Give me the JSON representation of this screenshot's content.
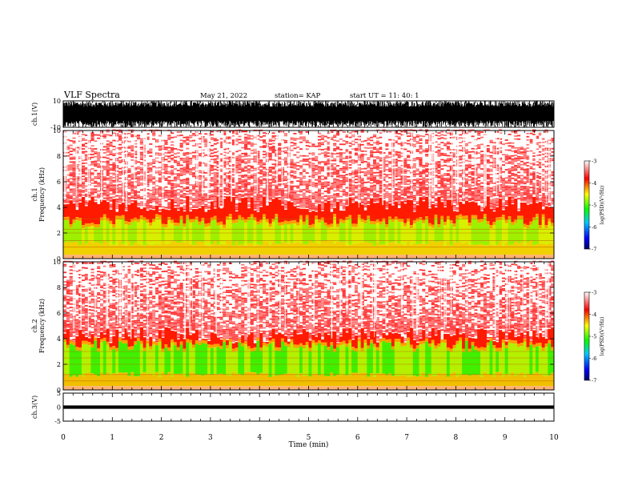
{
  "header": {
    "title": "VLF Spectra",
    "date": "May 21, 2022",
    "station": "station= KAP",
    "start": "start  UT =   11: 40: 1"
  },
  "chart_data": [
    {
      "type": "line",
      "panel": "ch1-waveform",
      "ylabel": "ch.1(V)",
      "yticks": [
        "10",
        "-10"
      ],
      "ylim": [
        -10,
        10
      ],
      "xlim": [
        0,
        10
      ],
      "description_values": {
        "min": -10,
        "max": 10
      },
      "fill": "#000000"
    },
    {
      "type": "heatmap",
      "panel": "ch1-spectrogram",
      "ylabel": "Frequency  (kHz)",
      "ylabel2": "ch.1",
      "yticks": [
        "0",
        "2",
        "4",
        "6",
        "8",
        "10"
      ],
      "ylim": [
        0,
        10
      ],
      "xlim": [
        0,
        10
      ],
      "colorbar": {
        "label": "log(PSD)(V²/Hz)",
        "ticks": [
          "-3",
          "-4",
          "-5",
          "-6",
          "-7"
        ],
        "range": [
          -7,
          -3
        ]
      }
    },
    {
      "type": "heatmap",
      "panel": "ch2-spectrogram",
      "ylabel": "Frequency  (kHz)",
      "ylabel2": "ch.2",
      "yticks": [
        "0",
        "2",
        "4",
        "6",
        "8",
        "10"
      ],
      "ylim": [
        0,
        10
      ],
      "xlim": [
        0,
        10
      ],
      "colorbar": {
        "label": "log(PSD)(V²/Hz)",
        "ticks": [
          "-3",
          "-4",
          "-5",
          "-6",
          "-7"
        ],
        "range": [
          -7,
          -3
        ]
      }
    },
    {
      "type": "line",
      "panel": "ch3-waveform",
      "ylabel": "ch.3(V)",
      "yticks": [
        "5",
        "0",
        "-5"
      ],
      "ylim": [
        -5,
        5
      ],
      "xlim": [
        0,
        10
      ],
      "band": [
        -0.6,
        0.6
      ]
    }
  ],
  "xaxis": {
    "label": "Time  (min)",
    "ticks": [
      "0",
      "1",
      "2",
      "3",
      "4",
      "5",
      "6",
      "7",
      "8",
      "9",
      "10"
    ]
  }
}
